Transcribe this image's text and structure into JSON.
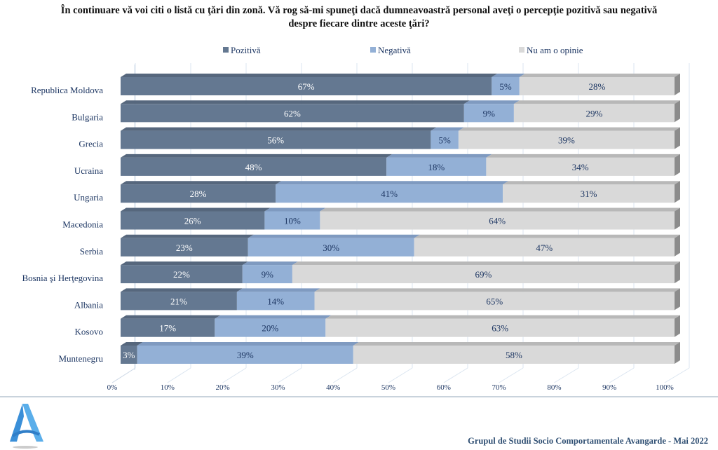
{
  "title_line1": "În continuare vă voi citi o listă cu ţări din zonă. Vă rog să-mi spuneţi dacă dumneavoastră personal aveţi o percepţie pozitivă sau negativă",
  "title_line2": "despre fiecare dintre aceste ţări?",
  "footer": "Grupul de Studii Socio Comportamentale Avangarde   - Mai 2022",
  "colors": {
    "Pozitivă": "#647891",
    "Negativă": "#93b0d6",
    "Nu am o opinie": "#d9d9d9"
  },
  "chart_data": {
    "type": "bar",
    "orientation": "horizontal",
    "stacked": "100%",
    "style": "3d",
    "legend": "top",
    "grid": true,
    "xlim": [
      0,
      100
    ],
    "xticks": [
      "0%",
      "10%",
      "20%",
      "30%",
      "40%",
      "50%",
      "60%",
      "70%",
      "80%",
      "90%",
      "100%"
    ],
    "categories": [
      "Republica Moldova",
      "Bulgaria",
      "Grecia",
      "Ucraina",
      "Ungaria",
      "Macedonia",
      "Serbia",
      "Bosnia şi Herţegovina",
      "Albania",
      "Kosovo",
      "Muntenegru"
    ],
    "series": [
      {
        "name": "Pozitivă",
        "values": [
          67,
          62,
          56,
          48,
          28,
          26,
          23,
          22,
          21,
          17,
          3
        ]
      },
      {
        "name": "Negativă",
        "values": [
          5,
          9,
          5,
          18,
          41,
          10,
          30,
          9,
          14,
          20,
          39
        ]
      },
      {
        "name": "Nu am o opinie",
        "values": [
          28,
          29,
          39,
          34,
          31,
          64,
          47,
          69,
          65,
          63,
          58
        ]
      }
    ]
  }
}
